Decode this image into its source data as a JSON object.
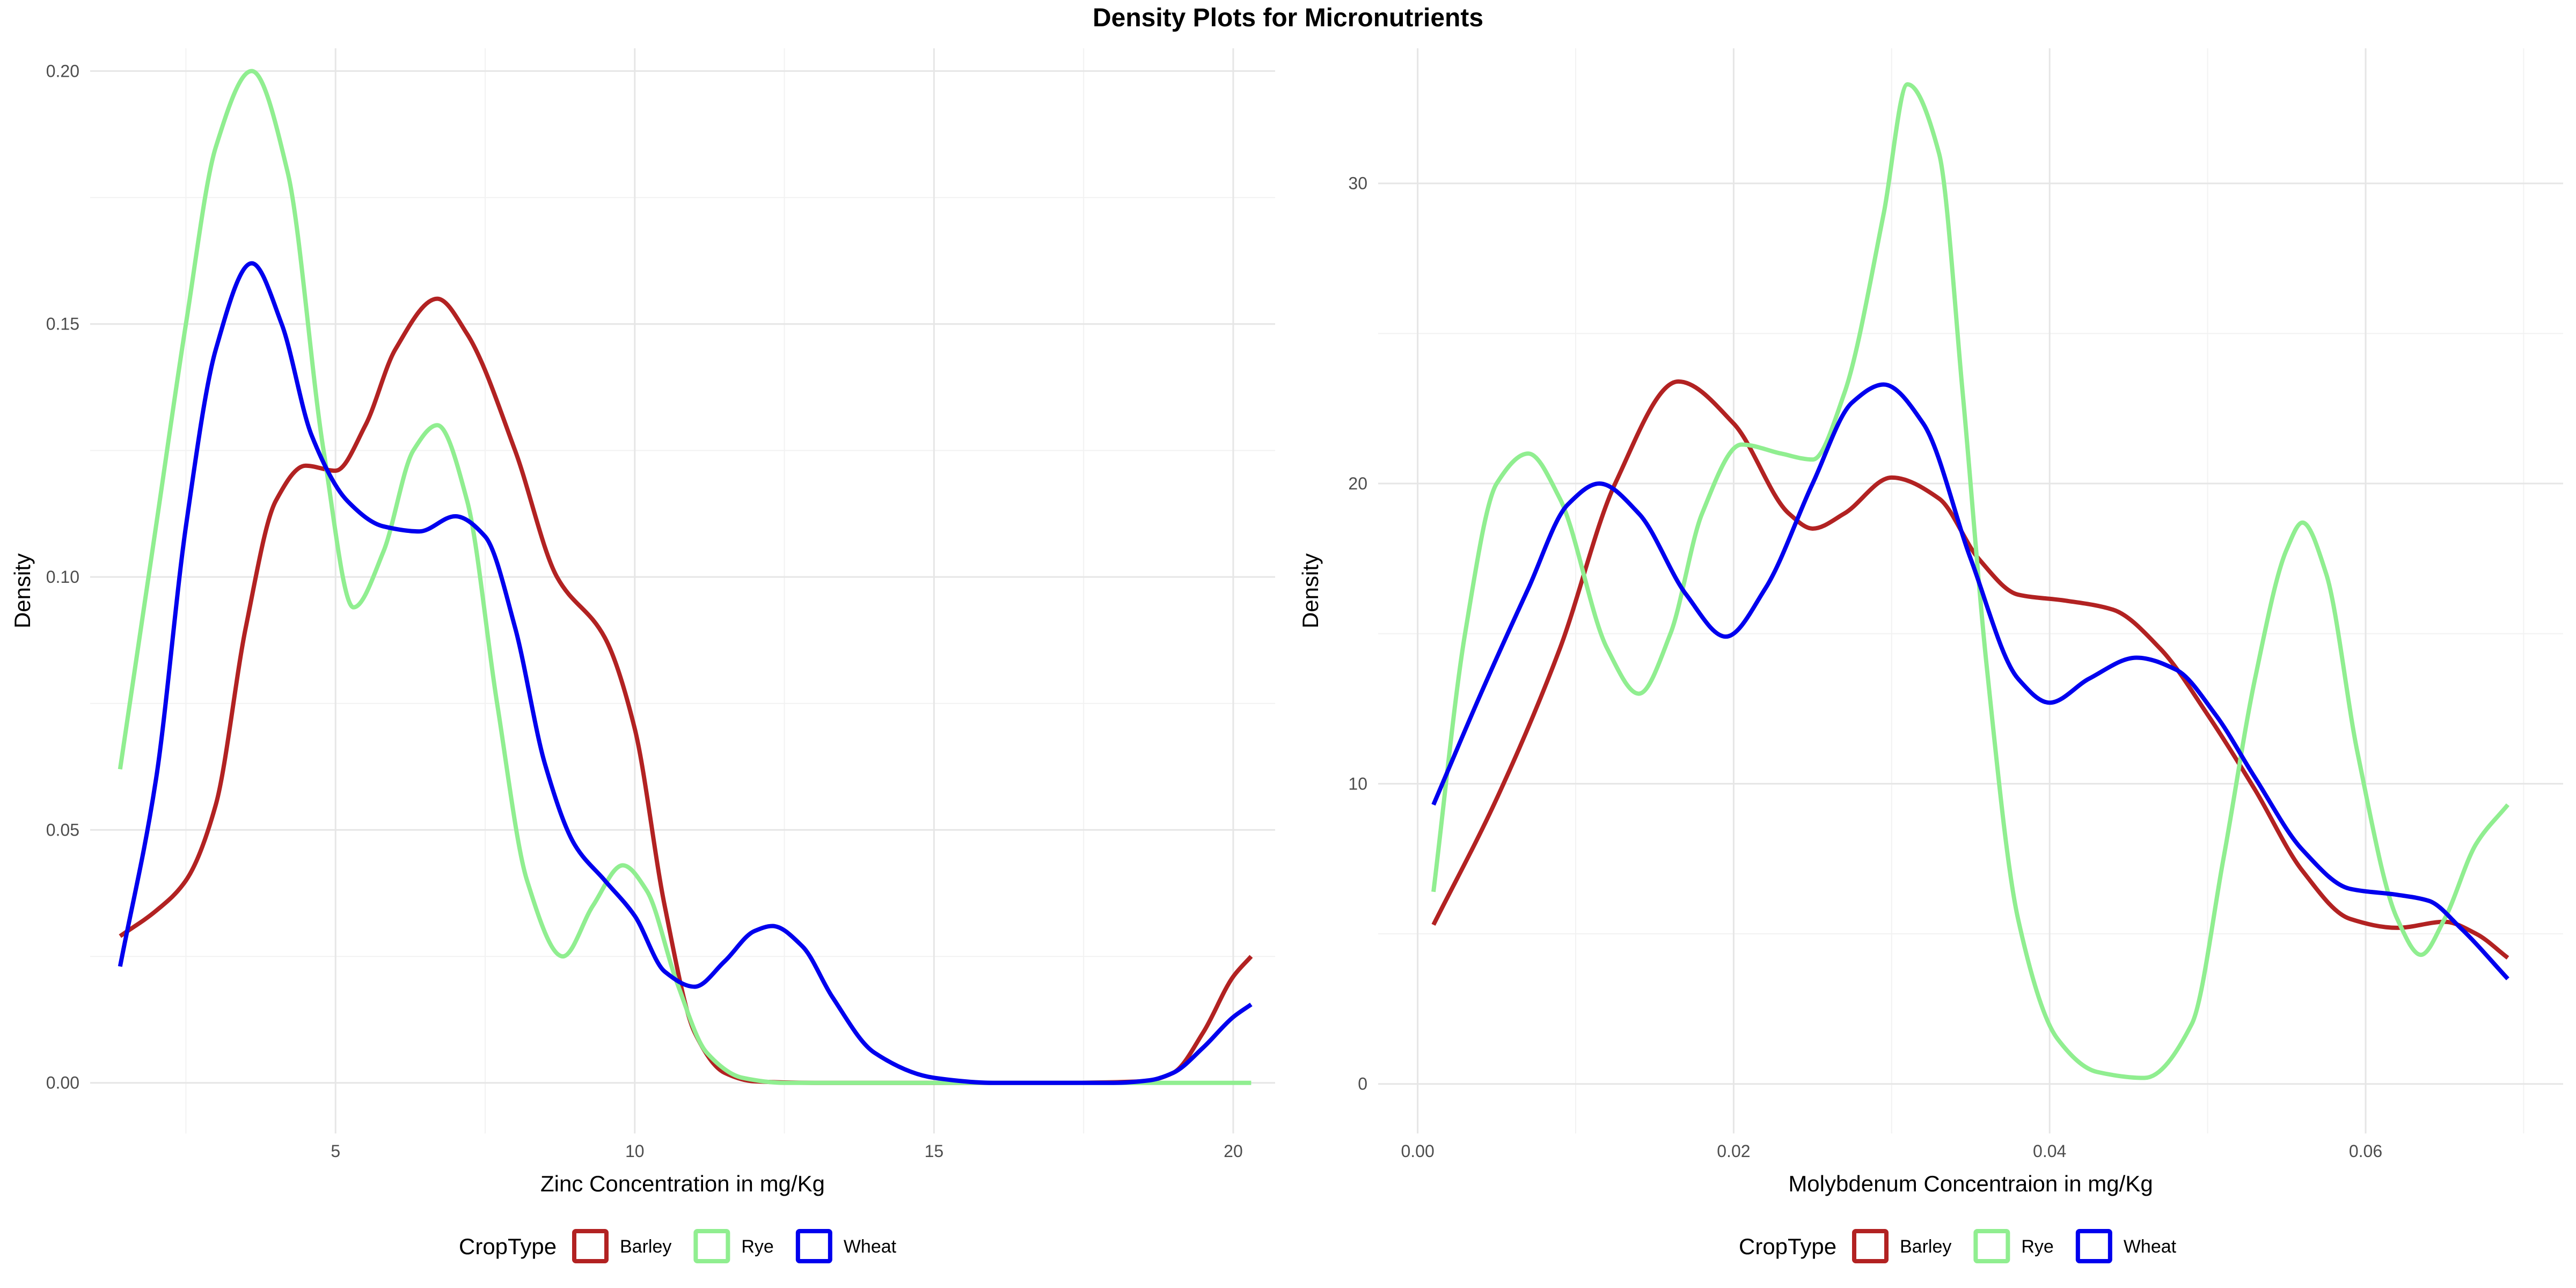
{
  "figure": {
    "title": "Density Plots for Micronutrients"
  },
  "colors": {
    "Barley": "#b22222",
    "Rye": "#90ee90",
    "Wheat": "#0000ee",
    "grid_major": "#e6e6e6",
    "grid_minor": "#f2f2f2"
  },
  "chart_data": [
    {
      "type": "line",
      "xlabel": "Zinc Concentration in mg/Kg",
      "ylabel": "Density",
      "xlim": [
        0.9,
        20.7
      ],
      "ylim": [
        -0.01,
        0.2045
      ],
      "xticks": [
        5,
        10,
        15,
        20
      ],
      "xtick_labels": [
        "5",
        "10",
        "15",
        "20"
      ],
      "xminor": [
        2.5,
        7.5,
        12.5,
        17.5
      ],
      "yticks": [
        0,
        0.05,
        0.1,
        0.15,
        0.2
      ],
      "ytick_labels": [
        "0.00",
        "0.05",
        "0.10",
        "0.15",
        "0.20"
      ],
      "yminor": [
        0.025,
        0.075,
        0.125,
        0.175
      ],
      "legend": {
        "title": "CropType",
        "position": "bottom",
        "entries": [
          "Barley",
          "Rye",
          "Wheat"
        ]
      },
      "series": [
        {
          "name": "Barley",
          "points": [
            [
              1.4,
              0.029
            ],
            [
              2,
              0.034
            ],
            [
              2.5,
              0.04
            ],
            [
              3,
              0.055
            ],
            [
              3.5,
              0.09
            ],
            [
              4,
              0.115
            ],
            [
              4.5,
              0.122
            ],
            [
              5,
              0.121
            ],
            [
              5.5,
              0.13
            ],
            [
              6,
              0.145
            ],
            [
              6.7,
              0.155
            ],
            [
              7.2,
              0.148
            ],
            [
              8,
              0.125
            ],
            [
              8.7,
              0.1
            ],
            [
              9.5,
              0.088
            ],
            [
              10,
              0.07
            ],
            [
              10.5,
              0.035
            ],
            [
              11,
              0.01
            ],
            [
              11.5,
              0.002
            ],
            [
              12,
              0.0003
            ],
            [
              13,
              0
            ],
            [
              15,
              0
            ],
            [
              17,
              0
            ],
            [
              18.5,
              0.0003
            ],
            [
              19,
              0.002
            ],
            [
              19.5,
              0.01
            ],
            [
              20,
              0.021
            ],
            [
              20.3,
              0.025
            ]
          ]
        },
        {
          "name": "Rye",
          "points": [
            [
              1.4,
              0.062
            ],
            [
              2,
              0.11
            ],
            [
              2.5,
              0.15
            ],
            [
              3,
              0.185
            ],
            [
              3.6,
              0.2
            ],
            [
              4.2,
              0.18
            ],
            [
              4.8,
              0.125
            ],
            [
              5.3,
              0.094
            ],
            [
              5.8,
              0.105
            ],
            [
              6.3,
              0.125
            ],
            [
              6.7,
              0.13
            ],
            [
              7.2,
              0.115
            ],
            [
              7.7,
              0.075
            ],
            [
              8.2,
              0.04
            ],
            [
              8.8,
              0.025
            ],
            [
              9.3,
              0.035
            ],
            [
              9.8,
              0.043
            ],
            [
              10.2,
              0.038
            ],
            [
              10.7,
              0.02
            ],
            [
              11.2,
              0.006
            ],
            [
              11.8,
              0.001
            ],
            [
              12.5,
              0
            ],
            [
              15,
              0
            ],
            [
              20.3,
              0
            ]
          ]
        },
        {
          "name": "Wheat",
          "points": [
            [
              1.4,
              0.023
            ],
            [
              2,
              0.06
            ],
            [
              2.5,
              0.11
            ],
            [
              3,
              0.145
            ],
            [
              3.6,
              0.162
            ],
            [
              4.1,
              0.15
            ],
            [
              4.6,
              0.128
            ],
            [
              5.2,
              0.115
            ],
            [
              5.8,
              0.11
            ],
            [
              6.4,
              0.109
            ],
            [
              7,
              0.112
            ],
            [
              7.5,
              0.108
            ],
            [
              8,
              0.09
            ],
            [
              8.5,
              0.063
            ],
            [
              9,
              0.047
            ],
            [
              9.5,
              0.04
            ],
            [
              10,
              0.033
            ],
            [
              10.5,
              0.022
            ],
            [
              11,
              0.019
            ],
            [
              11.5,
              0.024
            ],
            [
              12,
              0.03
            ],
            [
              12.3,
              0.031
            ],
            [
              12.8,
              0.027
            ],
            [
              13.3,
              0.017
            ],
            [
              14,
              0.006
            ],
            [
              15,
              0.001
            ],
            [
              16,
              0
            ],
            [
              18,
              0
            ],
            [
              18.6,
              0.0005
            ],
            [
              19,
              0.002
            ],
            [
              19.5,
              0.007
            ],
            [
              20,
              0.013
            ],
            [
              20.3,
              0.0155
            ]
          ]
        }
      ]
    },
    {
      "type": "line",
      "xlabel": "Molybdenum Concentraion in mg/Kg",
      "ylabel": "Density",
      "xlim": [
        -0.0025,
        0.0725
      ],
      "ylim": [
        -1.65,
        34.5
      ],
      "xticks": [
        0,
        0.02,
        0.04,
        0.06
      ],
      "xtick_labels": [
        "0.00",
        "0.02",
        "0.04",
        "0.06"
      ],
      "xminor": [
        0.01,
        0.03,
        0.05,
        0.07
      ],
      "yticks": [
        0,
        10,
        20,
        30
      ],
      "ytick_labels": [
        "0",
        "10",
        "20",
        "30"
      ],
      "yminor": [
        5,
        15,
        25
      ],
      "legend": {
        "title": "CropType",
        "position": "bottom",
        "entries": [
          "Barley",
          "Rye",
          "Wheat"
        ]
      },
      "series": [
        {
          "name": "Barley",
          "points": [
            [
              0.001,
              5.3
            ],
            [
              0.005,
              9.5
            ],
            [
              0.009,
              14.5
            ],
            [
              0.0125,
              20
            ],
            [
              0.0165,
              23.4
            ],
            [
              0.02,
              22
            ],
            [
              0.0235,
              19
            ],
            [
              0.025,
              18.5
            ],
            [
              0.027,
              19
            ],
            [
              0.03,
              20.2
            ],
            [
              0.033,
              19.5
            ],
            [
              0.0355,
              17.5
            ],
            [
              0.038,
              16.3
            ],
            [
              0.041,
              16.1
            ],
            [
              0.044,
              15.8
            ],
            [
              0.047,
              14.5
            ],
            [
              0.05,
              12.3
            ],
            [
              0.053,
              9.8
            ],
            [
              0.056,
              7.1
            ],
            [
              0.059,
              5.5
            ],
            [
              0.062,
              5.2
            ],
            [
              0.065,
              5.4
            ],
            [
              0.067,
              5
            ],
            [
              0.069,
              4.2
            ]
          ]
        },
        {
          "name": "Rye",
          "points": [
            [
              0.001,
              6.4
            ],
            [
              0.003,
              15
            ],
            [
              0.005,
              20
            ],
            [
              0.007,
              21
            ],
            [
              0.009,
              19.5
            ],
            [
              0.012,
              14.5
            ],
            [
              0.014,
              13
            ],
            [
              0.016,
              15
            ],
            [
              0.018,
              19
            ],
            [
              0.0205,
              21.3
            ],
            [
              0.023,
              21
            ],
            [
              0.025,
              20.8
            ],
            [
              0.027,
              23
            ],
            [
              0.0295,
              29
            ],
            [
              0.031,
              33.3
            ],
            [
              0.033,
              31
            ],
            [
              0.0345,
              23
            ],
            [
              0.036,
              14
            ],
            [
              0.038,
              5.5
            ],
            [
              0.0405,
              1.5
            ],
            [
              0.043,
              0.4
            ],
            [
              0.046,
              0.2
            ],
            [
              0.049,
              2
            ],
            [
              0.051,
              7.5
            ],
            [
              0.053,
              13.5
            ],
            [
              0.055,
              17.8
            ],
            [
              0.056,
              18.7
            ],
            [
              0.0575,
              17
            ],
            [
              0.0595,
              11
            ],
            [
              0.062,
              5.5
            ],
            [
              0.0635,
              4.3
            ],
            [
              0.065,
              5.5
            ],
            [
              0.067,
              8
            ],
            [
              0.069,
              9.3
            ]
          ]
        },
        {
          "name": "Wheat",
          "points": [
            [
              0.001,
              9.3
            ],
            [
              0.004,
              13
            ],
            [
              0.007,
              16.5
            ],
            [
              0.0095,
              19.3
            ],
            [
              0.0115,
              20
            ],
            [
              0.014,
              19
            ],
            [
              0.017,
              16.3
            ],
            [
              0.0195,
              14.9
            ],
            [
              0.022,
              16.5
            ],
            [
              0.025,
              20
            ],
            [
              0.0275,
              22.7
            ],
            [
              0.0295,
              23.3
            ],
            [
              0.032,
              22
            ],
            [
              0.035,
              17.5
            ],
            [
              0.038,
              13.5
            ],
            [
              0.04,
              12.7
            ],
            [
              0.0425,
              13.5
            ],
            [
              0.0455,
              14.2
            ],
            [
              0.048,
              13.8
            ],
            [
              0.0505,
              12.3
            ],
            [
              0.053,
              10.2
            ],
            [
              0.056,
              7.8
            ],
            [
              0.059,
              6.5
            ],
            [
              0.062,
              6.3
            ],
            [
              0.064,
              6.1
            ],
            [
              0.066,
              5.2
            ],
            [
              0.069,
              3.5
            ]
          ]
        }
      ]
    }
  ]
}
